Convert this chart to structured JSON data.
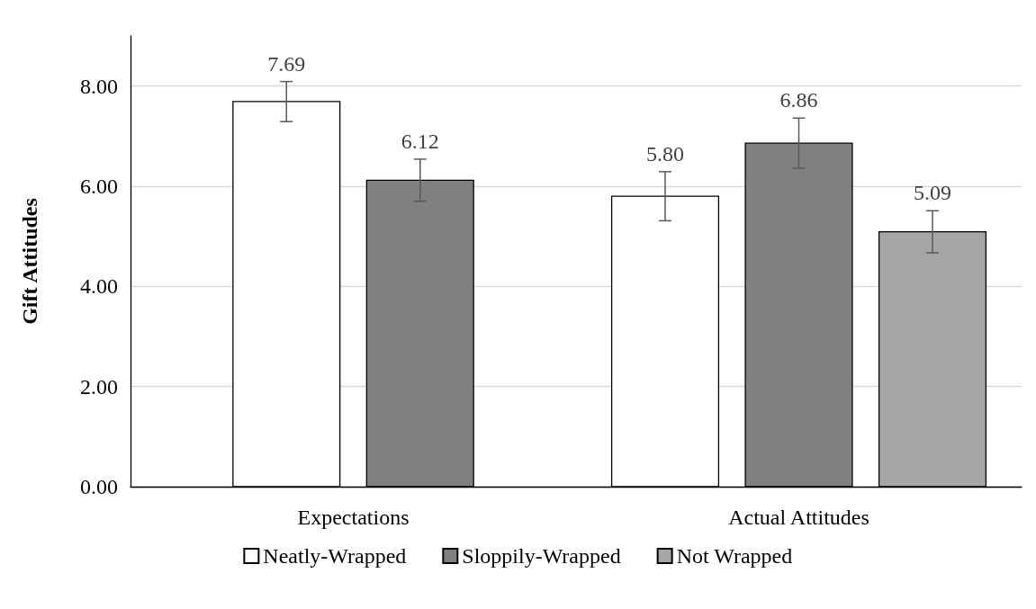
{
  "chart_data": {
    "type": "bar",
    "ylabel": "Gift Attitudes",
    "categories": [
      "Expectations",
      "Actual Attitudes"
    ],
    "series": [
      {
        "name": "Neatly-Wrapped",
        "color": "#ffffff",
        "values": [
          7.69,
          5.8
        ],
        "errors": [
          0.4,
          0.49
        ],
        "value_labels": [
          "7.69",
          "5.80"
        ]
      },
      {
        "name": "Sloppily-Wrapped",
        "color": "#808080",
        "values": [
          6.12,
          6.86
        ],
        "errors": [
          0.42,
          0.5
        ],
        "value_labels": [
          "6.12",
          "6.86"
        ]
      },
      {
        "name": "Not Wrapped",
        "color": "#a6a6a6",
        "values": [
          null,
          5.09
        ],
        "errors": [
          null,
          0.42
        ],
        "value_labels": [
          null,
          "5.09"
        ]
      }
    ],
    "ylim": [
      0,
      9
    ],
    "yticks": [
      {
        "value": 0,
        "label": "0.00"
      },
      {
        "value": 2,
        "label": "2.00"
      },
      {
        "value": 4,
        "label": "4.00"
      },
      {
        "value": 6,
        "label": "6.00"
      },
      {
        "value": 8,
        "label": "8.00"
      }
    ],
    "grid": "y",
    "legend": "bottom"
  }
}
